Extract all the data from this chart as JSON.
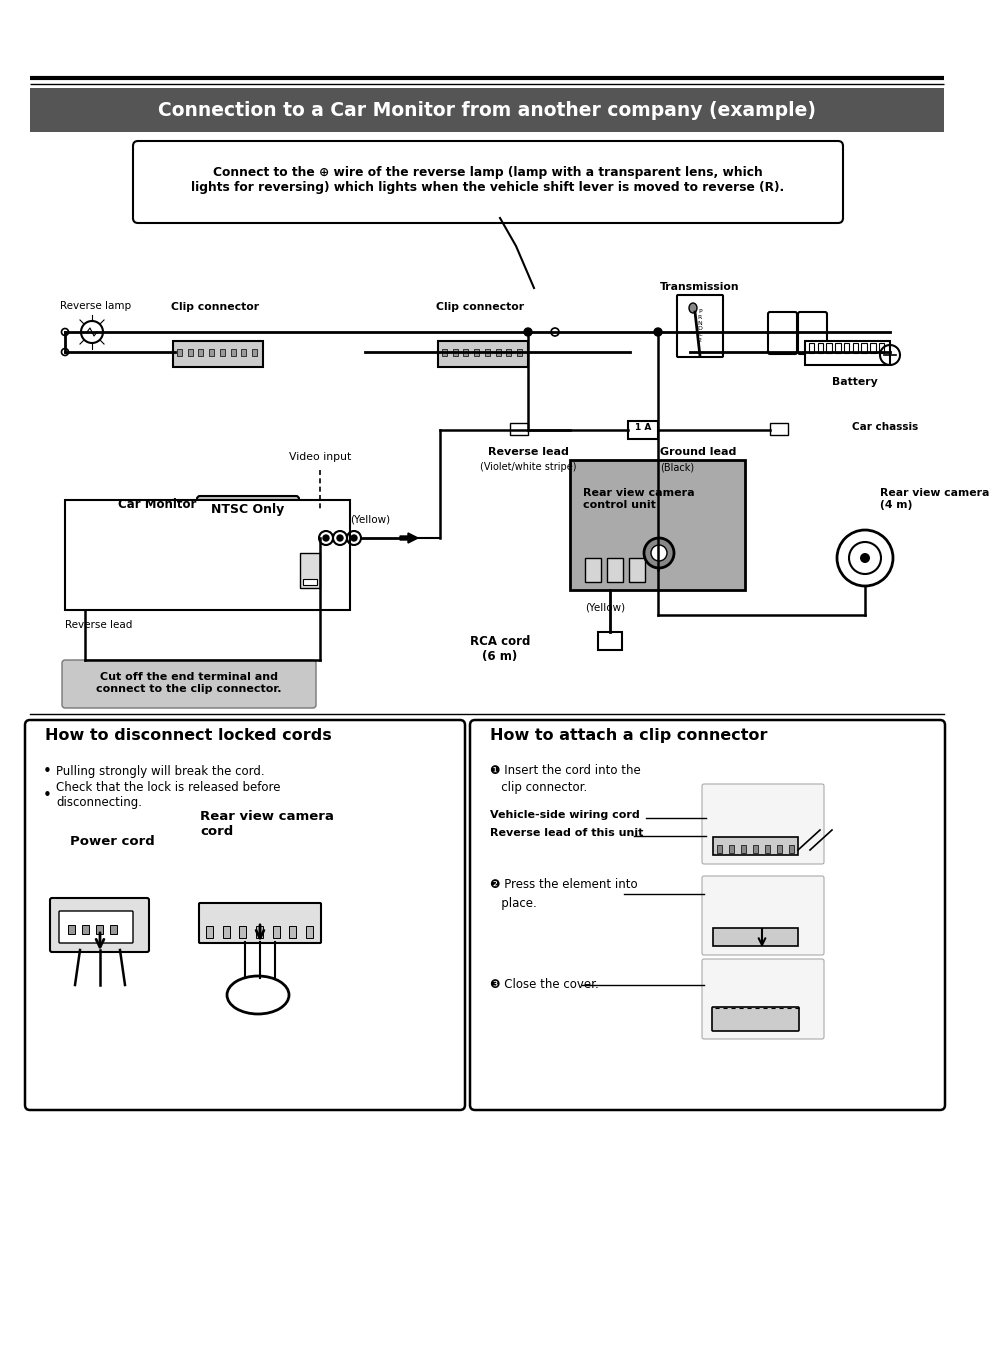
{
  "bg_color": "#ffffff",
  "title_text": "Connection to a Car Monitor from another company (example)",
  "title_bg": "#555555",
  "callout_text": "Connect to the ⊕ wire of the reverse lamp (lamp with a transparent lens, which\nlights for reversing) which lights when the vehicle shift lever is moved to reverse (R).",
  "lbl_reverse_lamp": "Reverse lamp",
  "lbl_clip1": "Clip connector",
  "lbl_clip2": "Clip connector",
  "lbl_transmission": "Transmission",
  "lbl_battery": "Battery",
  "lbl_car_chassis": "Car chassis",
  "lbl_video_input": "Video input",
  "lbl_car_monitor": "Car Monitor",
  "lbl_ntsc": "NTSC Only",
  "lbl_yellow1": "(Yellow)",
  "lbl_rev_lead": "Reverse lead",
  "lbl_rev_lead_sub": "(Violet/white stripe)",
  "lbl_gnd_lead": "Ground lead",
  "lbl_gnd_lead_sub": "(Black)",
  "lbl_rvc_unit": "Rear view camera\ncontrol unit",
  "lbl_yellow2": "(Yellow)",
  "lbl_rca_cord": "RCA cord\n(6 m)",
  "lbl_rear_cam": "Rear view camera\n(4 m)",
  "lbl_rev_lead2": "Reverse lead",
  "lbl_cutoff": "Cut off the end terminal and\nconnect to the clip connector.",
  "s1_title": "How to disconnect locked cords",
  "s1_b1": "Pulling strongly will break the cord.",
  "s1_b2": "Check that the lock is released before\ndisconnecting.",
  "s1_label1": "Power cord",
  "s1_label2": "Rear view camera\ncord",
  "s2_title": "How to attach a clip connector",
  "s2_s1a": "❶ Insert the cord into the",
  "s2_s1b": "   clip connector.",
  "s2_lbl1": "Vehicle-side wiring cord",
  "s2_lbl2": "Reverse lead of this unit",
  "s2_s2a": "❷ Press the element into",
  "s2_s2b": "   place.",
  "s2_s3": "❸ Close the cover."
}
